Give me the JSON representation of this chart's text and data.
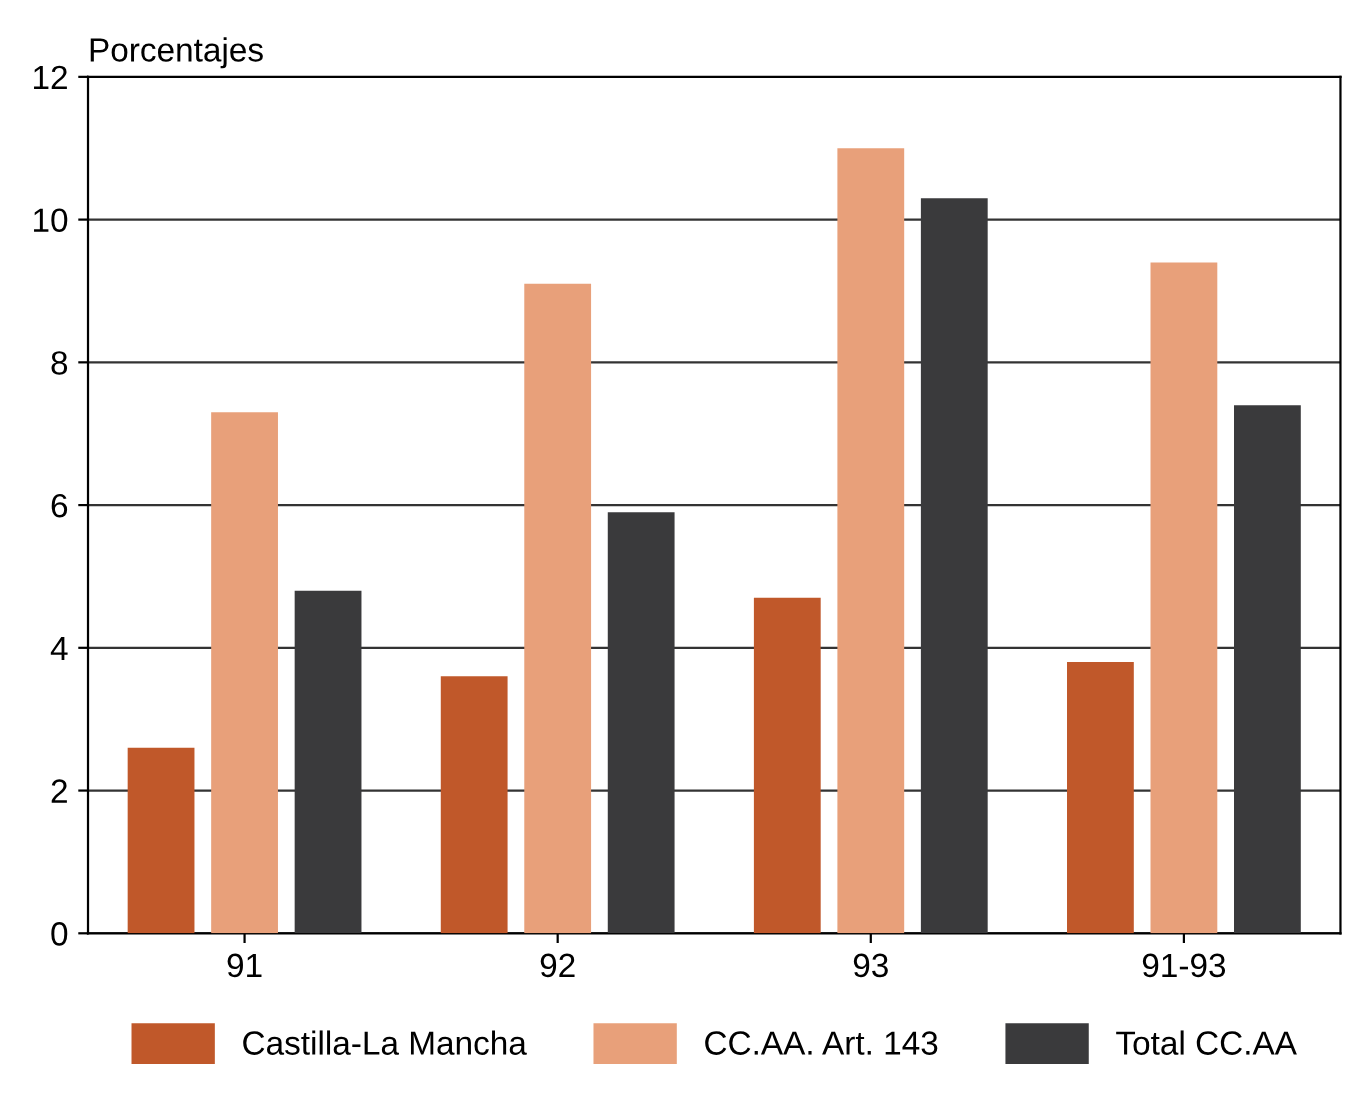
{
  "chart_data": {
    "type": "bar",
    "ylabel": "Porcentajes",
    "categories": [
      "91",
      "92",
      "93",
      "91-93"
    ],
    "series": [
      {
        "name": "Castilla-La Mancha",
        "color": "#c0582a",
        "values": [
          2.6,
          3.6,
          4.7,
          3.8
        ]
      },
      {
        "name": "CC.AA. Art. 143",
        "color": "#e8a07a",
        "values": [
          7.3,
          9.1,
          11.0,
          9.4
        ]
      },
      {
        "name": "Total CC.AA",
        "color": "#3a3a3c",
        "values": [
          4.8,
          5.9,
          10.3,
          7.4
        ]
      }
    ],
    "ylim": [
      0,
      12
    ],
    "yticks": [
      0,
      2,
      4,
      6,
      8,
      10,
      12
    ],
    "grid": "y",
    "legend": "bottom"
  }
}
